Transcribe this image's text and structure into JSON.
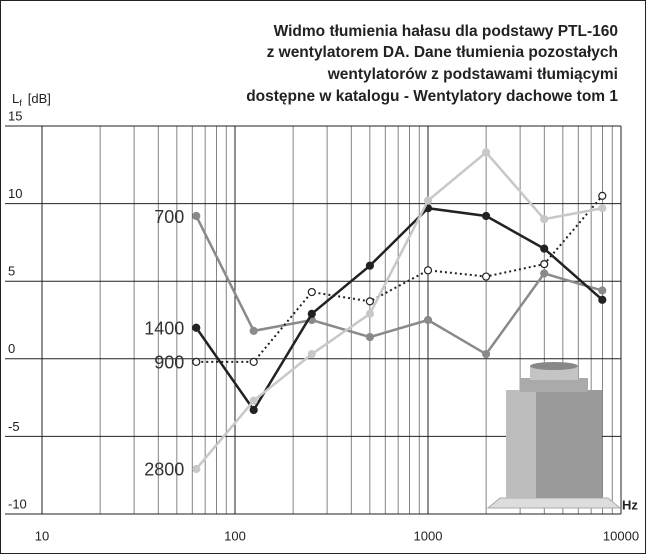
{
  "chart_data": {
    "type": "line",
    "title": [
      "Widmo tłumienia hałasu dla podstawy  PTL-160",
      "z wentylatorem DA.  Dane tłumienia pozostałych",
      "wentylatorów z podstawami tłumiącymi",
      "dostępne w katalogu - Wentylatory dachowe tom 1"
    ],
    "y_label": {
      "main": "L",
      "sub": "f",
      "unit": "[dB]"
    },
    "x_label": "Hz",
    "x": [
      63,
      125,
      250,
      500,
      1000,
      2000,
      4000,
      8000
    ],
    "xlog": true,
    "xlim": [
      10,
      10000
    ],
    "xticks": [
      10,
      100,
      1000,
      10000
    ],
    "xgrid_minor": [
      20,
      30,
      40,
      50,
      60,
      70,
      80,
      90,
      200,
      300,
      400,
      500,
      600,
      700,
      800,
      900,
      2000,
      3000,
      4000,
      5000,
      6000,
      7000,
      8000,
      9000
    ],
    "ylim": [
      -10,
      15
    ],
    "yticks": [
      -10,
      -5,
      0,
      5,
      10,
      15
    ],
    "grid": true,
    "series": [
      {
        "name": "700",
        "color": "#8a8a8a",
        "dash": false,
        "marker_fill": "#8a8a8a",
        "values": [
          9.2,
          1.8,
          2.5,
          1.4,
          2.5,
          0.3,
          5.5,
          4.4
        ]
      },
      {
        "name": "1400",
        "color": "#222222",
        "dash": false,
        "marker_fill": "#222222",
        "values": [
          2.0,
          -3.3,
          2.9,
          6.0,
          9.7,
          9.2,
          7.1,
          3.8
        ]
      },
      {
        "name": "900",
        "color": "#222222",
        "dash": true,
        "marker_fill": "#ffffff",
        "values": [
          -0.2,
          -0.2,
          4.3,
          3.7,
          5.7,
          5.3,
          6.1,
          10.5
        ]
      },
      {
        "name": "2800",
        "color": "#c8c8c8",
        "dash": false,
        "marker_fill": "#c8c8c8",
        "values": [
          -7.1,
          -2.7,
          0.3,
          2.9,
          10.2,
          13.3,
          9.0,
          9.7
        ]
      }
    ]
  }
}
